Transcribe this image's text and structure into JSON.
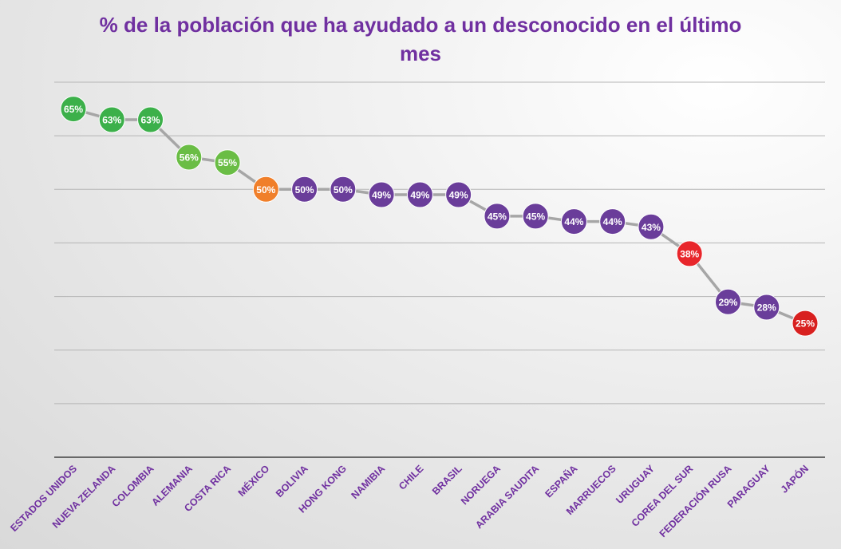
{
  "chart_data": {
    "type": "line",
    "title_lines": [
      "% de la población que ha ayudado a un desconocido en el último",
      "mes"
    ],
    "categories": [
      "ESTADOS UNIDOS",
      "NUEVA ZELANDA",
      "COLOMBIA",
      "ALEMANIA",
      "COSTA RICA",
      "MÉXICO",
      "BOLIVIA",
      "HONG KONG",
      "NAMIBIA",
      "CHILE",
      "BRASIL",
      "NORUEGA",
      "ARABIA SAUDITA",
      "ESPAÑA",
      "MARRUECOS",
      "URUGUAY",
      "COREA DEL SUR",
      "FEDERACIÓN RUSA",
      "PARAGUAY",
      "JAPÓN"
    ],
    "values": [
      65,
      63,
      63,
      56,
      55,
      50,
      50,
      50,
      49,
      49,
      49,
      45,
      45,
      44,
      44,
      43,
      38,
      29,
      28,
      25
    ],
    "labels": [
      "65%",
      "63%",
      "63%",
      "56%",
      "55%",
      "50%",
      "50%",
      "50%",
      "49%",
      "49%",
      "49%",
      "45%",
      "45%",
      "44%",
      "44%",
      "43%",
      "38%",
      "29%",
      "28%",
      "25%"
    ],
    "point_colors": [
      "#3cb04a",
      "#3cb04a",
      "#3cb04a",
      "#6abd45",
      "#6abd45",
      "#f07f2a",
      "#6a3d9a",
      "#6a3d9a",
      "#6a3d9a",
      "#6a3d9a",
      "#6a3d9a",
      "#6a3d9a",
      "#6a3d9a",
      "#6a3d9a",
      "#6a3d9a",
      "#6a3d9a",
      "#e8262b",
      "#6a3d9a",
      "#6a3d9a",
      "#d8201f"
    ],
    "line_color": "#a6a6a6",
    "title_color": "#7030a0",
    "ylim": [
      0,
      70
    ],
    "ytick_step": 10,
    "grid": true,
    "xlabel": "",
    "ylabel": ""
  }
}
